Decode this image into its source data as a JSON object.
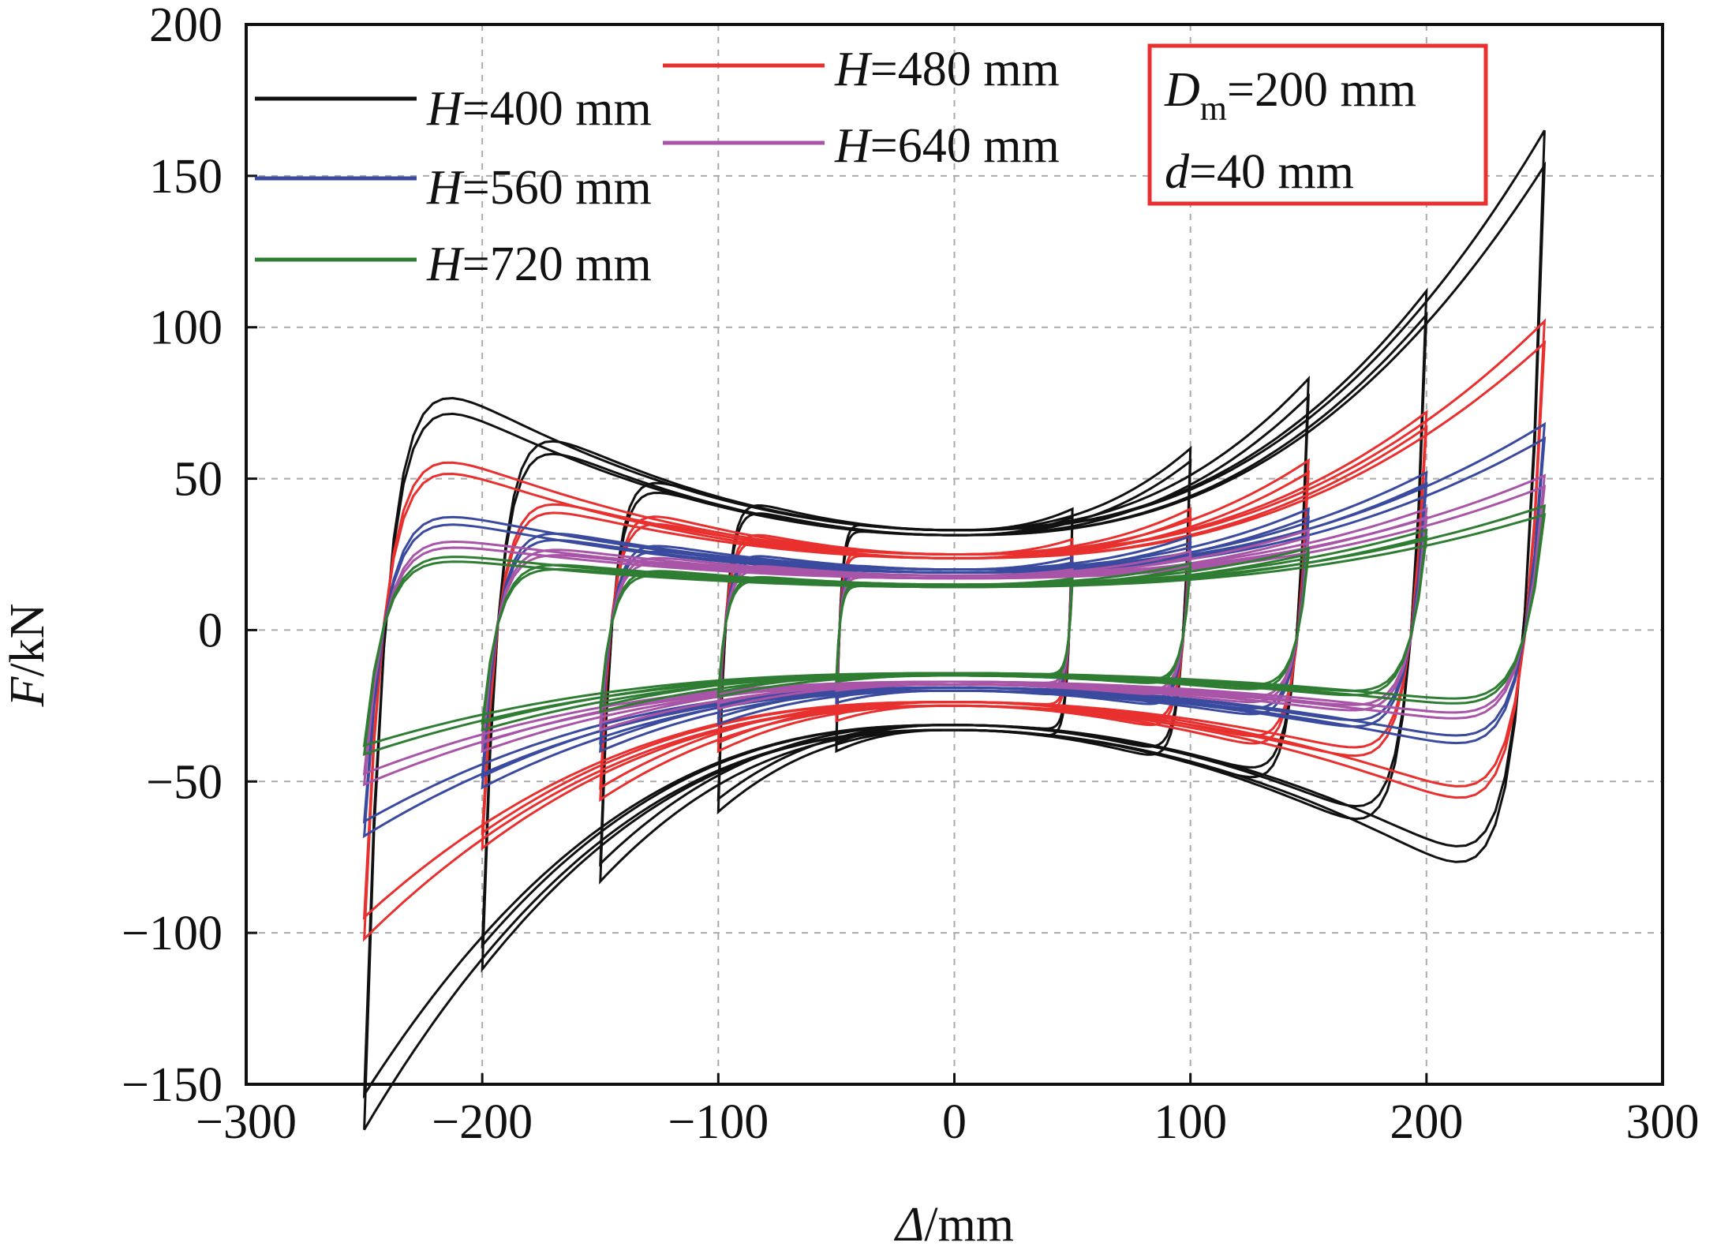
{
  "chart_data": {
    "type": "line",
    "title": "",
    "xlabel_var": "Δ",
    "xlabel_unit": "/mm",
    "ylabel_var": "F",
    "ylabel_unit": "/kN",
    "xlim": [
      -300,
      300
    ],
    "ylim": [
      -150,
      200
    ],
    "xticks": [
      -300,
      -200,
      -100,
      0,
      100,
      200,
      300
    ],
    "xtick_labels": [
      "−300",
      "−200",
      "−100",
      "0",
      "100",
      "200",
      "300"
    ],
    "yticks": [
      -150,
      -100,
      -50,
      0,
      50,
      100,
      150,
      200
    ],
    "ytick_labels": [
      "−150",
      "−100",
      "−50",
      "0",
      "50",
      "100",
      "150",
      "200"
    ],
    "grid": true,
    "annotation": {
      "line1_var": "D",
      "line1_sub": "m",
      "line1_rest": "=200 mm",
      "line2_var": "d",
      "line2_rest": "=40 mm",
      "border_color": "#e8302f"
    },
    "amplitudes_mm": [
      50,
      100,
      150,
      200,
      250
    ],
    "series": [
      {
        "name": "H=400 mm",
        "var": "H",
        "label": "=400 mm",
        "color": "#111111",
        "plateau_kN": 33,
        "peak_kN": [
          40,
          60,
          83,
          112,
          165
        ],
        "overshoot_kN": [
          36,
          46,
          57,
          77,
          98
        ]
      },
      {
        "name": "H=480 mm",
        "var": "H",
        "label": "=480 mm",
        "color": "#e8302f",
        "plateau_kN": 25,
        "peak_kN": [
          30,
          40,
          56,
          72,
          102
        ],
        "overshoot_kN": [
          27,
          35,
          44,
          50,
          70
        ]
      },
      {
        "name": "H=560 mm",
        "var": "H",
        "label": "=560 mm",
        "color": "#3a4a9e",
        "plateau_kN": 20,
        "peak_kN": [
          24,
          31,
          40,
          52,
          68
        ],
        "overshoot_kN": [
          22,
          27,
          32,
          38,
          46
        ]
      },
      {
        "name": "H=640 mm",
        "var": "H",
        "label": "=640 mm",
        "color": "#a855a8",
        "plateau_kN": 18,
        "peak_kN": [
          20,
          26,
          33,
          40,
          51
        ],
        "overshoot_kN": [
          19,
          23,
          27,
          31,
          35
        ]
      },
      {
        "name": "H=720 mm",
        "var": "H",
        "label": "=720 mm",
        "color": "#2e7d32",
        "plateau_kN": 15,
        "peak_kN": [
          17,
          22,
          27,
          33,
          41
        ],
        "overshoot_kN": [
          16,
          19,
          22,
          25,
          29
        ]
      }
    ],
    "legend": "top-left"
  }
}
